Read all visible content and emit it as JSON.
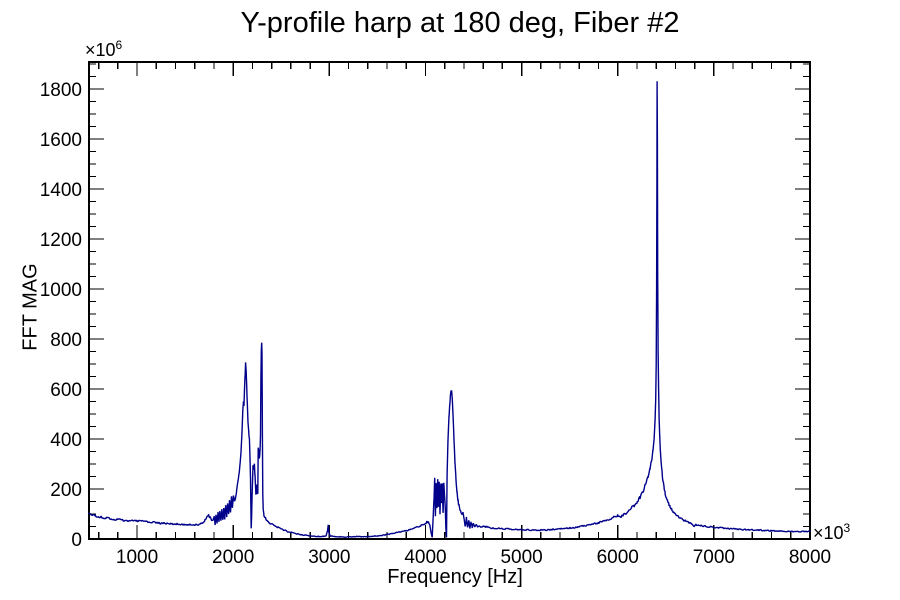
{
  "frame": {
    "background": "#ffffff",
    "line_color": "#000000",
    "tick_color": "#000000"
  },
  "chart_data": {
    "type": "line",
    "title": "Y-profile harp at 180 deg, Fiber #2",
    "xlabel": "Frequency [Hz]",
    "ylabel": "FFT MAG",
    "legend": "none",
    "grid": "off",
    "x_axis": {
      "min": 500,
      "max": 8000,
      "major_ticks": [
        1000,
        2000,
        3000,
        4000,
        5000,
        6000,
        7000,
        8000
      ],
      "minor_step": 200,
      "scale_base": "×10",
      "scale_exp": "3"
    },
    "y_axis": {
      "min": 0,
      "max": 1908,
      "major_ticks": [
        0,
        200,
        400,
        600,
        800,
        1000,
        1200,
        1400,
        1600,
        1800
      ],
      "minor_step": 50,
      "scale_base": "×10",
      "scale_exp": "6"
    },
    "noise": {
      "seed": 20,
      "base": 1.2,
      "rel": 0.04,
      "cap": 150
    },
    "series": [
      {
        "name": "FFT magnitude",
        "color": "#00008b",
        "line_width": 1.4,
        "points": [
          [
            500,
            103
          ],
          [
            530,
            97
          ],
          [
            560,
            93
          ],
          [
            600,
            89
          ],
          [
            640,
            86
          ],
          [
            680,
            83
          ],
          [
            720,
            81
          ],
          [
            760,
            79
          ],
          [
            800,
            78
          ],
          [
            850,
            76
          ],
          [
            900,
            74
          ],
          [
            950,
            72
          ],
          [
            1000,
            74
          ],
          [
            1050,
            71
          ],
          [
            1100,
            69
          ],
          [
            1150,
            67
          ],
          [
            1200,
            65
          ],
          [
            1250,
            63
          ],
          [
            1300,
            62
          ],
          [
            1350,
            61
          ],
          [
            1400,
            60
          ],
          [
            1450,
            59
          ],
          [
            1500,
            58
          ],
          [
            1550,
            57
          ],
          [
            1600,
            57
          ],
          [
            1640,
            58
          ],
          [
            1680,
            62
          ],
          [
            1700,
            70
          ],
          [
            1715,
            82
          ],
          [
            1730,
            92
          ],
          [
            1745,
            95
          ],
          [
            1760,
            88
          ],
          [
            1775,
            78
          ],
          [
            1790,
            72
          ],
          [
            1802,
            88
          ],
          [
            1812,
            58
          ],
          [
            1822,
            96
          ],
          [
            1832,
            62
          ],
          [
            1842,
            105
          ],
          [
            1852,
            66
          ],
          [
            1862,
            112
          ],
          [
            1872,
            70
          ],
          [
            1882,
            118
          ],
          [
            1892,
            76
          ],
          [
            1902,
            124
          ],
          [
            1912,
            82
          ],
          [
            1922,
            132
          ],
          [
            1932,
            88
          ],
          [
            1942,
            142
          ],
          [
            1952,
            96
          ],
          [
            1962,
            152
          ],
          [
            1972,
            106
          ],
          [
            1982,
            165
          ],
          [
            1992,
            120
          ],
          [
            2002,
            180
          ],
          [
            2012,
            145
          ],
          [
            2022,
            165
          ],
          [
            2032,
            185
          ],
          [
            2042,
            208
          ],
          [
            2052,
            232
          ],
          [
            2062,
            262
          ],
          [
            2072,
            300
          ],
          [
            2082,
            350
          ],
          [
            2092,
            430
          ],
          [
            2100,
            520
          ],
          [
            2107,
            552
          ],
          [
            2112,
            538
          ],
          [
            2118,
            600
          ],
          [
            2124,
            655
          ],
          [
            2129,
            700
          ],
          [
            2134,
            672
          ],
          [
            2140,
            610
          ],
          [
            2147,
            540
          ],
          [
            2154,
            470
          ],
          [
            2161,
            430
          ],
          [
            2168,
            398
          ],
          [
            2174,
            340
          ],
          [
            2180,
            240
          ],
          [
            2184,
            120
          ],
          [
            2187,
            42
          ],
          [
            2191,
            90
          ],
          [
            2196,
            160
          ],
          [
            2201,
            230
          ],
          [
            2206,
            298
          ],
          [
            2211,
            288
          ],
          [
            2216,
            278
          ],
          [
            2221,
            295
          ],
          [
            2226,
            262
          ],
          [
            2231,
            215
          ],
          [
            2236,
            178
          ],
          [
            2241,
            212
          ],
          [
            2246,
            196
          ],
          [
            2251,
            180
          ],
          [
            2256,
            186
          ],
          [
            2260,
            360
          ],
          [
            2264,
            352
          ],
          [
            2268,
            338
          ],
          [
            2272,
            325
          ],
          [
            2276,
            338
          ],
          [
            2280,
            360
          ],
          [
            2284,
            420
          ],
          [
            2288,
            640
          ],
          [
            2292,
            760
          ],
          [
            2296,
            786
          ],
          [
            2300,
            740
          ],
          [
            2304,
            420
          ],
          [
            2308,
            180
          ],
          [
            2312,
            120
          ],
          [
            2318,
            98
          ],
          [
            2326,
            90
          ],
          [
            2336,
            84
          ],
          [
            2348,
            78
          ],
          [
            2360,
            72
          ],
          [
            2375,
            66
          ],
          [
            2390,
            62
          ],
          [
            2410,
            57
          ],
          [
            2435,
            52
          ],
          [
            2460,
            47
          ],
          [
            2490,
            42
          ],
          [
            2520,
            37
          ],
          [
            2560,
            31
          ],
          [
            2600,
            26
          ],
          [
            2650,
            22
          ],
          [
            2700,
            18
          ],
          [
            2750,
            15
          ],
          [
            2800,
            13
          ],
          [
            2850,
            11
          ],
          [
            2900,
            10
          ],
          [
            2940,
            10
          ],
          [
            2965,
            12
          ],
          [
            2980,
            30
          ],
          [
            2988,
            56
          ],
          [
            2996,
            25
          ],
          [
            3010,
            12
          ],
          [
            3050,
            10
          ],
          [
            3100,
            9
          ],
          [
            3150,
            8
          ],
          [
            3200,
            8
          ],
          [
            3250,
            9
          ],
          [
            3300,
            10
          ],
          [
            3350,
            9
          ],
          [
            3400,
            10
          ],
          [
            3450,
            11
          ],
          [
            3500,
            13
          ],
          [
            3550,
            15
          ],
          [
            3600,
            18
          ],
          [
            3650,
            21
          ],
          [
            3700,
            25
          ],
          [
            3750,
            29
          ],
          [
            3800,
            34
          ],
          [
            3850,
            39
          ],
          [
            3900,
            45
          ],
          [
            3950,
            52
          ],
          [
            3980,
            58
          ],
          [
            4000,
            62
          ],
          [
            4015,
            68
          ],
          [
            4030,
            72
          ],
          [
            4045,
            55
          ],
          [
            4058,
            25
          ],
          [
            4070,
            6
          ],
          [
            4080,
            90
          ],
          [
            4088,
            150
          ],
          [
            4096,
            238
          ],
          [
            4103,
            95
          ],
          [
            4111,
            225
          ],
          [
            4119,
            120
          ],
          [
            4127,
            243
          ],
          [
            4135,
            130
          ],
          [
            4143,
            235
          ],
          [
            4151,
            102
          ],
          [
            4159,
            220
          ],
          [
            4167,
            148
          ],
          [
            4175,
            226
          ],
          [
            4183,
            108
          ],
          [
            4191,
            228
          ],
          [
            4199,
            172
          ],
          [
            4206,
            120
          ],
          [
            4213,
            40
          ],
          [
            4219,
            6
          ],
          [
            4225,
            260
          ],
          [
            4231,
            360
          ],
          [
            4238,
            430
          ],
          [
            4245,
            490
          ],
          [
            4252,
            535
          ],
          [
            4259,
            568
          ],
          [
            4266,
            597
          ],
          [
            4272,
            590
          ],
          [
            4279,
            555
          ],
          [
            4286,
            505
          ],
          [
            4293,
            440
          ],
          [
            4300,
            370
          ],
          [
            4307,
            305
          ],
          [
            4314,
            262
          ],
          [
            4321,
            222
          ],
          [
            4328,
            188
          ],
          [
            4336,
            160
          ],
          [
            4345,
            140
          ],
          [
            4355,
            124
          ],
          [
            4366,
            110
          ],
          [
            4378,
            99
          ],
          [
            4390,
            108
          ],
          [
            4402,
            78
          ],
          [
            4414,
            50
          ],
          [
            4426,
            85
          ],
          [
            4438,
            46
          ],
          [
            4450,
            76
          ],
          [
            4462,
            42
          ],
          [
            4474,
            68
          ],
          [
            4486,
            46
          ],
          [
            4498,
            62
          ],
          [
            4512,
            48
          ],
          [
            4526,
            58
          ],
          [
            4542,
            50
          ],
          [
            4560,
            55
          ],
          [
            4580,
            49
          ],
          [
            4600,
            52
          ],
          [
            4630,
            48
          ],
          [
            4660,
            46
          ],
          [
            4700,
            44
          ],
          [
            4750,
            42
          ],
          [
            4800,
            41
          ],
          [
            4870,
            39
          ],
          [
            4940,
            38
          ],
          [
            5000,
            37
          ],
          [
            5080,
            36
          ],
          [
            5160,
            35
          ],
          [
            5240,
            36
          ],
          [
            5320,
            38
          ],
          [
            5400,
            40
          ],
          [
            5480,
            43
          ],
          [
            5560,
            47
          ],
          [
            5640,
            52
          ],
          [
            5720,
            58
          ],
          [
            5800,
            65
          ],
          [
            5860,
            72
          ],
          [
            5920,
            80
          ],
          [
            5960,
            88
          ],
          [
            6000,
            95
          ],
          [
            6025,
            88
          ],
          [
            6050,
            94
          ],
          [
            6080,
            102
          ],
          [
            6110,
            112
          ],
          [
            6140,
            122
          ],
          [
            6170,
            134
          ],
          [
            6200,
            148
          ],
          [
            6230,
            165
          ],
          [
            6260,
            188
          ],
          [
            6290,
            218
          ],
          [
            6315,
            248
          ],
          [
            6335,
            280
          ],
          [
            6352,
            315
          ],
          [
            6366,
            355
          ],
          [
            6378,
            405
          ],
          [
            6388,
            470
          ],
          [
            6395,
            560
          ],
          [
            6400,
            700
          ],
          [
            6404,
            1000
          ],
          [
            6407,
            1400
          ],
          [
            6410,
            1825
          ],
          [
            6413,
            1600
          ],
          [
            6416,
            1050
          ],
          [
            6420,
            760
          ],
          [
            6425,
            600
          ],
          [
            6430,
            490
          ],
          [
            6436,
            420
          ],
          [
            6443,
            360
          ],
          [
            6450,
            318
          ],
          [
            6458,
            278
          ],
          [
            6466,
            248
          ],
          [
            6475,
            222
          ],
          [
            6484,
            202
          ],
          [
            6494,
            184
          ],
          [
            6505,
            168
          ],
          [
            6517,
            153
          ],
          [
            6530,
            140
          ],
          [
            6544,
            129
          ],
          [
            6559,
            119
          ],
          [
            6575,
            110
          ],
          [
            6592,
            102
          ],
          [
            6610,
            95
          ],
          [
            6630,
            89
          ],
          [
            6652,
            83
          ],
          [
            6675,
            78
          ],
          [
            6700,
            73
          ],
          [
            6726,
            68
          ],
          [
            6752,
            64
          ],
          [
            6775,
            60
          ],
          [
            6790,
            50
          ],
          [
            6802,
            54
          ],
          [
            6815,
            58
          ],
          [
            6835,
            56
          ],
          [
            6860,
            54
          ],
          [
            6890,
            52
          ],
          [
            6925,
            50
          ],
          [
            6960,
            48
          ],
          [
            7000,
            47
          ],
          [
            7050,
            45
          ],
          [
            7100,
            43
          ],
          [
            7160,
            41
          ],
          [
            7220,
            40
          ],
          [
            7290,
            38
          ],
          [
            7360,
            37
          ],
          [
            7440,
            36
          ],
          [
            7520,
            34
          ],
          [
            7600,
            33
          ],
          [
            7690,
            32
          ],
          [
            7780,
            31
          ],
          [
            7870,
            30
          ],
          [
            7950,
            30
          ],
          [
            8000,
            32
          ]
        ]
      }
    ]
  }
}
